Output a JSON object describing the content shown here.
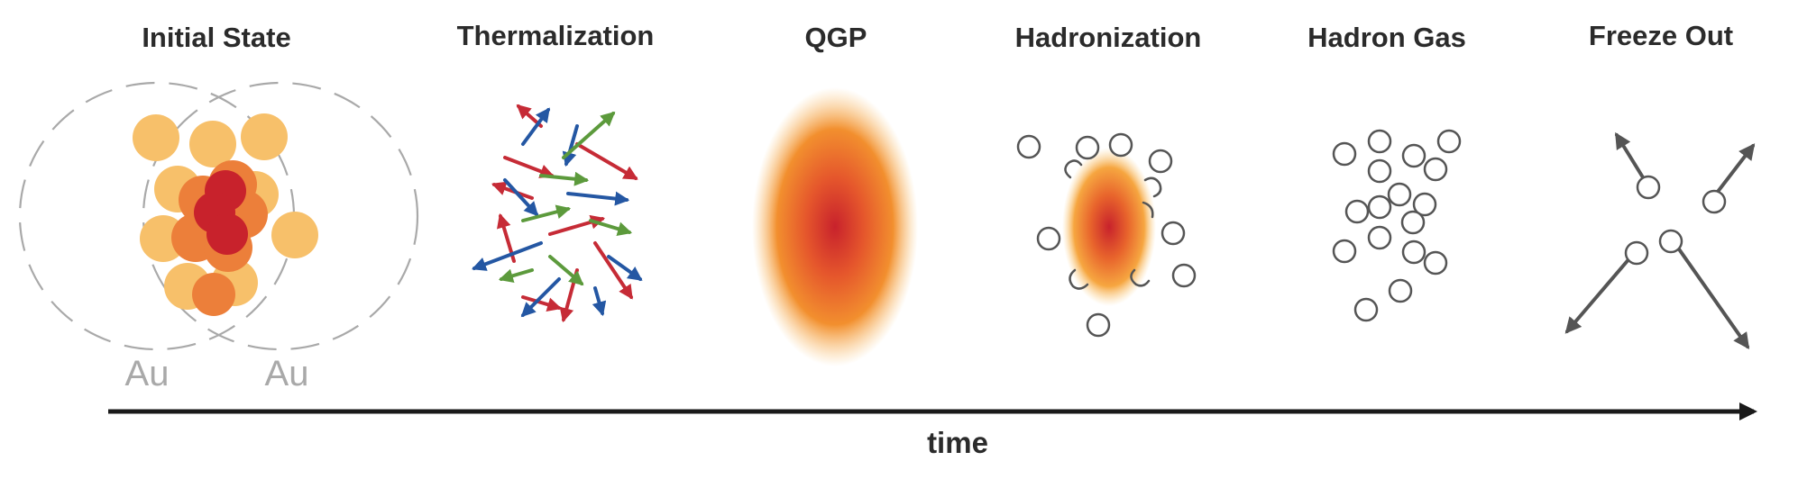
{
  "stages": [
    {
      "id": "initial-state",
      "title": "Initial State"
    },
    {
      "id": "thermalization",
      "title": "Thermalization"
    },
    {
      "id": "qgp",
      "title": "QGP"
    },
    {
      "id": "hadronization",
      "title": "Hadronization"
    },
    {
      "id": "hadron-gas",
      "title": "Hadron Gas"
    },
    {
      "id": "freeze-out",
      "title": "Freeze Out"
    }
  ],
  "nuclei": {
    "left_label": "Au",
    "right_label": "Au"
  },
  "axis": {
    "label": "time"
  },
  "colors": {
    "nucleon_light": "#f7c06a",
    "nucleon_mid": "#ec7f3a",
    "nucleon_core": "#c8222c",
    "arrow_red": "#c62b36",
    "arrow_blue": "#2457a3",
    "arrow_green": "#5c9a3c",
    "outline_gray": "#555555",
    "dashed_gray": "#a9a9a9"
  }
}
